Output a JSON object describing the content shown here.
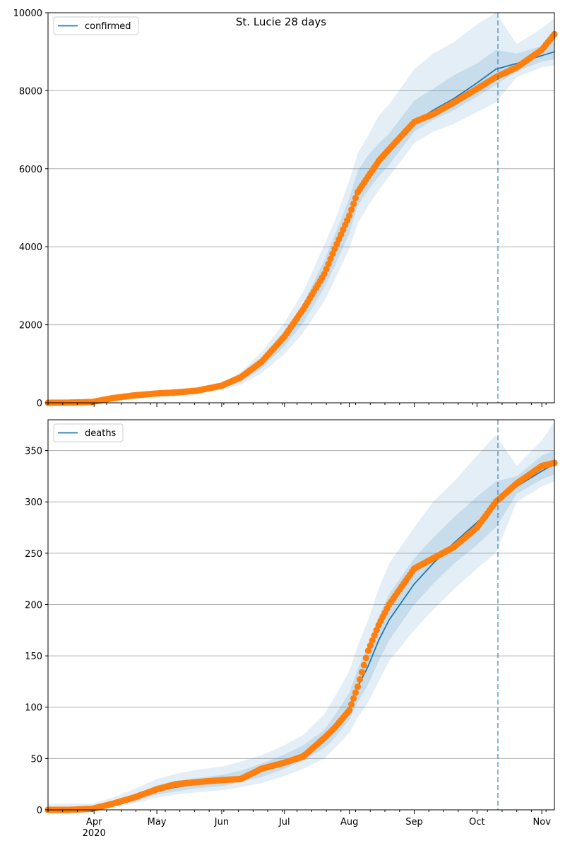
{
  "title": "St. Lucie 28 days",
  "colors": {
    "model": "#1f77b4",
    "observed": "#ff7f0e",
    "band": "#1f77b4",
    "grid": "#b0b0b0"
  },
  "x_axis": {
    "months": [
      "Apr",
      "May",
      "Jun",
      "Jul",
      "Aug",
      "Sep",
      "Oct",
      "Nov"
    ],
    "year_label": "2020"
  },
  "chart_data": [
    {
      "type": "line",
      "series_name": "confirmed",
      "legend": "upper-left",
      "grid": "horizontal",
      "ylim": [
        0,
        10000
      ],
      "yticks": [
        "0",
        "2000",
        "4000",
        "6000",
        "8000",
        "10000"
      ],
      "forecast_start": "2020-10-11",
      "x": [
        "2020-03-10",
        "2020-03-20",
        "2020-03-31",
        "2020-04-10",
        "2020-04-20",
        "2020-05-01",
        "2020-05-10",
        "2020-05-20",
        "2020-06-01",
        "2020-06-10",
        "2020-06-20",
        "2020-07-01",
        "2020-07-10",
        "2020-07-20",
        "2020-07-25",
        "2020-08-01",
        "2020-08-05",
        "2020-08-10",
        "2020-08-15",
        "2020-08-20",
        "2020-09-01",
        "2020-09-10",
        "2020-09-20",
        "2020-10-01",
        "2020-10-10",
        "2020-10-20",
        "2020-11-01",
        "2020-11-07"
      ],
      "model": [
        0,
        5,
        20,
        110,
        180,
        230,
        260,
        300,
        420,
        600,
        1000,
        1650,
        2300,
        3300,
        3900,
        4800,
        5500,
        5900,
        6200,
        6450,
        7200,
        7500,
        7800,
        8200,
        8550,
        8700,
        8900,
        9000
      ],
      "observed": [
        0,
        5,
        20,
        120,
        190,
        240,
        265,
        310,
        440,
        650,
        1050,
        1700,
        2400,
        3300,
        3950,
        4800,
        5400,
        5800,
        6200,
        6500,
        7200,
        7400,
        7700,
        8050,
        8350,
        8600,
        9050,
        9450
      ],
      "band_outer_low": [
        0,
        3,
        12,
        80,
        140,
        180,
        210,
        240,
        330,
        460,
        760,
        1250,
        1800,
        2600,
        3150,
        3950,
        4600,
        5050,
        5450,
        5800,
        6650,
        6950,
        7150,
        7450,
        7700,
        8350,
        8600,
        8650
      ],
      "band_outer_high": [
        0,
        8,
        30,
        150,
        230,
        280,
        310,
        360,
        520,
        780,
        1300,
        2050,
        2850,
        4050,
        4650,
        5700,
        6400,
        6850,
        7350,
        7650,
        8550,
        8950,
        9250,
        9700,
        10000,
        9200,
        9600,
        9850
      ],
      "band_inner_low": [
        0,
        4,
        16,
        95,
        160,
        205,
        235,
        270,
        380,
        530,
        880,
        1450,
        2050,
        2950,
        3500,
        4350,
        5050,
        5450,
        5800,
        6100,
        6950,
        7250,
        7500,
        7850,
        8150,
        8500,
        8750,
        8800
      ],
      "band_inner_high": [
        0,
        6,
        25,
        130,
        205,
        255,
        285,
        330,
        470,
        690,
        1150,
        1850,
        2550,
        3650,
        4300,
        5250,
        5950,
        6350,
        6650,
        6900,
        7750,
        8050,
        8400,
        8700,
        9050,
        8950,
        9150,
        9300
      ]
    },
    {
      "type": "line",
      "series_name": "deaths",
      "legend": "upper-left",
      "grid": "horizontal",
      "ylim": [
        0,
        380
      ],
      "yticks": [
        "0",
        "50",
        "100",
        "150",
        "200",
        "250",
        "300",
        "350"
      ],
      "forecast_start": "2020-10-11",
      "x": [
        "2020-03-10",
        "2020-03-20",
        "2020-03-31",
        "2020-04-10",
        "2020-04-20",
        "2020-05-01",
        "2020-05-10",
        "2020-05-20",
        "2020-06-01",
        "2020-06-10",
        "2020-06-20",
        "2020-07-01",
        "2020-07-10",
        "2020-07-20",
        "2020-07-25",
        "2020-08-01",
        "2020-08-05",
        "2020-08-10",
        "2020-08-15",
        "2020-08-20",
        "2020-09-01",
        "2020-09-10",
        "2020-09-20",
        "2020-10-01",
        "2020-10-10",
        "2020-10-20",
        "2020-11-01",
        "2020-11-07"
      ],
      "model": [
        0,
        0,
        1,
        5,
        10,
        18,
        22,
        25,
        28,
        32,
        38,
        46,
        55,
        68,
        80,
        100,
        120,
        140,
        165,
        185,
        220,
        240,
        260,
        280,
        298,
        315,
        330,
        337
      ],
      "observed": [
        0,
        0,
        1,
        6,
        12,
        20,
        25,
        27,
        29,
        30,
        40,
        46,
        52,
        70,
        80,
        97,
        120,
        155,
        180,
        200,
        235,
        245,
        256,
        275,
        300,
        318,
        335,
        338
      ],
      "band_outer_low": [
        0,
        0,
        0,
        3,
        6,
        12,
        15,
        17,
        19,
        22,
        26,
        33,
        40,
        50,
        60,
        75,
        90,
        105,
        125,
        145,
        175,
        195,
        215,
        235,
        250,
        300,
        315,
        320
      ],
      "band_outer_high": [
        6,
        6,
        6,
        12,
        20,
        30,
        35,
        39,
        42,
        47,
        53,
        63,
        73,
        93,
        110,
        135,
        160,
        185,
        215,
        240,
        275,
        300,
        320,
        345,
        365,
        335,
        360,
        378
      ],
      "band_inner_low": [
        0,
        0,
        0,
        4,
        8,
        15,
        18,
        21,
        23,
        27,
        32,
        40,
        48,
        60,
        70,
        88,
        105,
        122,
        145,
        165,
        200,
        220,
        240,
        258,
        275,
        308,
        322,
        327
      ],
      "band_inner_high": [
        3,
        3,
        3,
        8,
        14,
        24,
        28,
        31,
        34,
        38,
        45,
        54,
        63,
        78,
        92,
        114,
        137,
        160,
        188,
        210,
        245,
        265,
        285,
        305,
        320,
        325,
        345,
        350
      ]
    }
  ]
}
